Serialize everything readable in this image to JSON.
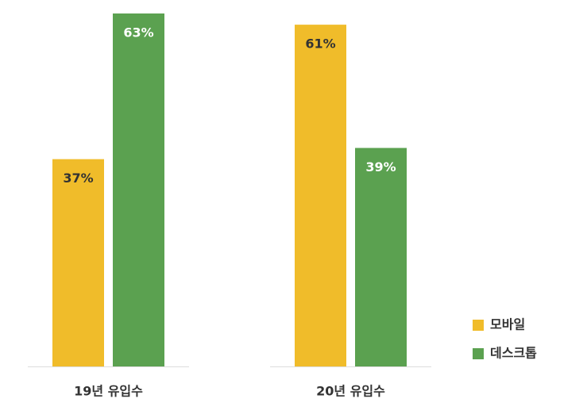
{
  "chart_data": {
    "type": "bar",
    "categories": [
      "19년 유입수",
      "20년 유입수"
    ],
    "series": [
      {
        "name": "모바일",
        "color": "#f0bc2a",
        "values": [
          37,
          61
        ],
        "value_labels": [
          "37%",
          "61%"
        ]
      },
      {
        "name": "데스크톱",
        "color": "#5ba150",
        "values": [
          63,
          39
        ],
        "value_labels": [
          "63%",
          "39%"
        ]
      }
    ],
    "legend": "right"
  }
}
